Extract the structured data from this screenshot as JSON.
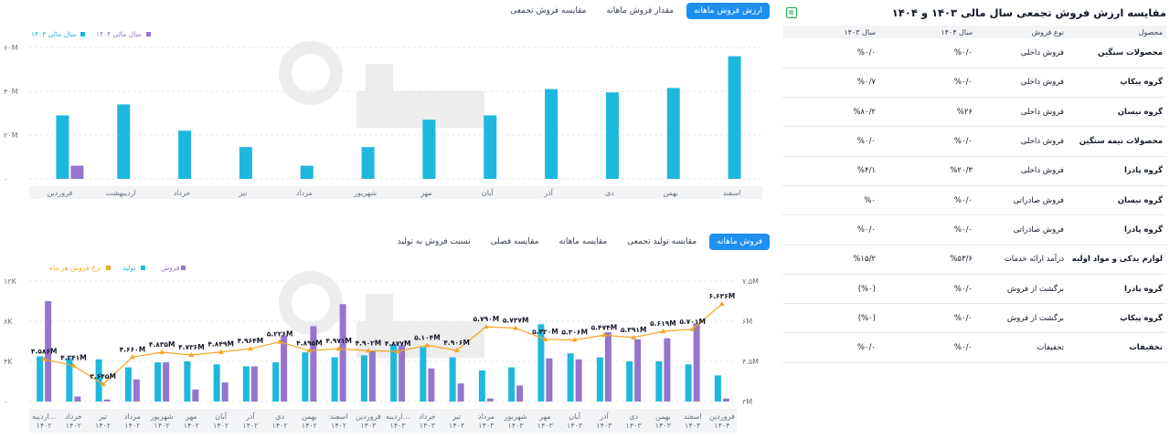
{
  "page_title": "مقایسه ارزش فروش تجمعی سال مالی ۱۴۰۳ و ۱۴۰۴",
  "top_tabs": [
    "ارزش فروش ماهانه",
    "مقدار فروش ماهانه",
    "مقایسه فروش تجمعی"
  ],
  "bottom_tabs": [
    "فروش ماهانه",
    "مقایسه تولید تجمعی",
    "مقایسه ماهانه",
    "مقایسه فصلی",
    "نسبت فروش به تولید"
  ],
  "colors": {
    "accent": "#1d8ff0",
    "cyan": "#1eb8de",
    "purple": "#9575cd",
    "orange": "#f5a623"
  },
  "table": {
    "headers": [
      "محصول",
      "نوع فروش",
      "سال ۱۴۰۴",
      "سال ۱۴۰۳"
    ],
    "rows": [
      [
        "محصولات سنگین",
        "فروش داخلی",
        "%۰/۰",
        "%۰/۰"
      ],
      [
        "گروه پیکاپ",
        "فروش داخلی",
        "%۰/۰",
        "%۰/۷"
      ],
      [
        "گروه نیسان",
        "فروش داخلی",
        "%۲۶",
        "%۸۰/۲"
      ],
      [
        "محصولات نیمه سنگین",
        "فروش داخلی",
        "%۰/۰",
        "%۰/۰"
      ],
      [
        "گروه پادرا",
        "فروش داخلی",
        "%۲۰/۳",
        "%۴/۱"
      ],
      [
        "گروه نیسان",
        "فروش صادراتی",
        "%۰/۰",
        "%۰"
      ],
      [
        "گروه پادرا",
        "فروش صادراتی",
        "%۰/۰",
        "%۰/۰"
      ],
      [
        "لوازم یدکی و مواد اولیه",
        "درآمد ارائه خدمات",
        "%۵۳/۶",
        "%۱۵/۲"
      ],
      [
        "گروه پادرا",
        "برگشت از فروش",
        "%۰/۰",
        "(%۰)"
      ],
      [
        "گروه پیکاپ",
        "برگشت از فروش",
        "%۰/۰",
        "(%۰)"
      ],
      [
        "تخفیفات",
        "تخفیفات",
        "%۰/۰",
        "%۰/۰"
      ]
    ]
  },
  "chart_data": [
    {
      "type": "bar",
      "legend": [
        "سال مالی ۱۴۰۴",
        "سال مالی ۱۴۰۳"
      ],
      "yticks": [
        "۶۰M",
        "۴۰M",
        "۲۰M",
        "۰"
      ],
      "ylim": [
        0,
        60
      ],
      "categories": [
        "فروردین",
        "اردیبهشت",
        "خرداد",
        "تیر",
        "مرداد",
        "شهریور",
        "مهر",
        "آبان",
        "آذر",
        "دی",
        "بهمن",
        "اسفند"
      ],
      "series": [
        {
          "name": "سال مالی ۱۴۰۳",
          "values": [
            29,
            34,
            22,
            14.5,
            6,
            14.5,
            27,
            29,
            41,
            39.5,
            41.5,
            56
          ]
        },
        {
          "name": "سال مالی ۱۴۰۴",
          "values": [
            6,
            0,
            0,
            0,
            0,
            0,
            0,
            0,
            0,
            0,
            0,
            0
          ]
        }
      ]
    },
    {
      "type": "bar",
      "legend": [
        "فروش",
        "تولید",
        "نرخ فروش هر ماه"
      ],
      "yticks_left": [
        "۱۲K",
        "۸K",
        "۴K",
        "۰"
      ],
      "yticks_right": [
        "۷.۵M",
        "۶M",
        "۴.۵M",
        "۳M"
      ],
      "ylim_left": [
        0,
        12000
      ],
      "ylim_right": [
        3,
        7.5
      ],
      "categories": [
        [
          "اردیبه...",
          "۱۴۰۲"
        ],
        [
          "خرداد",
          "۱۴۰۲"
        ],
        [
          "تیر",
          "۱۴۰۲"
        ],
        [
          "مرداد",
          "۱۴۰۲"
        ],
        [
          "شهریور",
          "۱۴۰۲"
        ],
        [
          "مهر",
          "۱۴۰۲"
        ],
        [
          "آبان",
          "۱۴۰۲"
        ],
        [
          "آذر",
          "۱۴۰۲"
        ],
        [
          "دی",
          "۱۴۰۲"
        ],
        [
          "بهمن",
          "۱۴۰۲"
        ],
        [
          "اسفند",
          "۱۴۰۲"
        ],
        [
          "فروردین",
          "۱۴۰۳"
        ],
        [
          "اردیبه...",
          "۱۴۰۳"
        ],
        [
          "خرداد",
          "۱۴۰۳"
        ],
        [
          "تیر",
          "۱۴۰۳"
        ],
        [
          "مرداد",
          "۱۴۰۳"
        ],
        [
          "شهریور",
          "۱۴۰۳"
        ],
        [
          "مهر",
          "۱۴۰۳"
        ],
        [
          "آبان",
          "۱۴۰۳"
        ],
        [
          "آذر",
          "۱۴۰۳"
        ],
        [
          "دی",
          "۱۴۰۳"
        ],
        [
          "بهمن",
          "۱۴۰۳"
        ],
        [
          "اسفند",
          "۱۴۰۳"
        ],
        [
          "فروردین",
          "۱۴۰۴"
        ]
      ],
      "series": [
        {
          "name": "تولید",
          "values": [
            4500,
            4300,
            4200,
            3400,
            3900,
            4000,
            3700,
            3500,
            3900,
            4900,
            4400,
            4600,
            5700,
            5400,
            4400,
            3100,
            3400,
            7700,
            4800,
            4400,
            4000,
            4000,
            3700,
            2600
          ]
        },
        {
          "name": "فروش",
          "values": [
            10000,
            500,
            200,
            2200,
            3900,
            1200,
            1900,
            3500,
            6600,
            7500,
            9700,
            5100,
            5600,
            3300,
            1800,
            300,
            1600,
            4300,
            4200,
            6900,
            6200,
            6300,
            7800,
            300
          ]
        },
        {
          "name": "نرخ فروش هر ماه",
          "values": [
            4.58,
            4.34,
            3.64,
            4.66,
            4.84,
            4.74,
            4.85,
            4.97,
            5.23,
            4.9,
            4.97,
            4.9,
            4.87,
            5.1,
            4.91,
            5.79,
            5.74,
            5.32,
            5.3,
            5.48,
            5.39,
            5.62,
            5.7,
            6.64
          ]
        }
      ],
      "point_labels": [
        "۴.۵۸۶M",
        "۴.۳۴۱M",
        "۳.۶۴۵M",
        "۴.۶۶۰M",
        "۴.۸۳۵M",
        "۴.۷۳۶M",
        "۴.۸۴۹M",
        "۴.۹۶۴M",
        "۵.۲۲۶M",
        "۴.۸۹۵M",
        "۴.۹۷۱M",
        "۴.۹۰۲M",
        "۴.۸۷۷M",
        "۵.۱۰۴M",
        "۴.۹۰۶M",
        "۵.۷۹۰M",
        "۵.۷۳۷M",
        "۵.۳۲۰M",
        "۵.۳۰۶M",
        "۵.۴۷۴M",
        "۵.۳۹۱M",
        "۵.۶۱۹M",
        "۵.۷۰۱M",
        "۶.۶۳۶M"
      ]
    }
  ]
}
